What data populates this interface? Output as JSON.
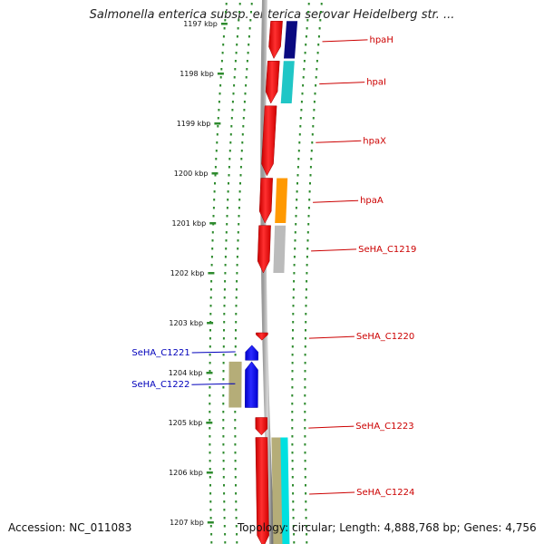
{
  "title": "Salmonella enterica subsp. enterica serovar Heidelberg str. ...",
  "accession": "Accession: NC_011083",
  "topology": "Topology: circular; Length: 4,888,768 bp; Genes: 4,756",
  "colors": {
    "forward": "#ff0000",
    "reverse": "#0000ff",
    "forward_label": "#cc0000",
    "reverse_label": "#0000bb",
    "tick": "#2e8b2e"
  },
  "ticks": [
    "1197 kbp",
    "1198 kbp",
    "1199 kbp",
    "1200 kbp",
    "1201 kbp",
    "1202 kbp",
    "1203 kbp",
    "1204 kbp",
    "1205 kbp",
    "1206 kbp",
    "1207 kbp"
  ],
  "genes": [
    {
      "name": "hpaH",
      "strand": "forward",
      "start_kbp": 1196.95,
      "end_kbp": 1197.7,
      "cog_color": "#0a0a80"
    },
    {
      "name": "hpaI",
      "strand": "forward",
      "start_kbp": 1197.75,
      "end_kbp": 1198.6,
      "cog_color": "#20c6c6"
    },
    {
      "name": "hpaX",
      "strand": "forward",
      "start_kbp": 1198.65,
      "end_kbp": 1200.05,
      "cog_color": ""
    },
    {
      "name": "hpaA",
      "strand": "forward",
      "start_kbp": 1200.1,
      "end_kbp": 1201.0,
      "cog_color": "#ff9900"
    },
    {
      "name": "SeHA_C1219",
      "strand": "forward",
      "start_kbp": 1201.05,
      "end_kbp": 1202.0,
      "cog_color": "#bbbbbb"
    },
    {
      "name": "SeHA_C1220",
      "strand": "forward",
      "start_kbp": 1203.2,
      "end_kbp": 1203.35,
      "cog_color": ""
    },
    {
      "name": "SeHA_C1221",
      "strand": "reverse",
      "start_kbp": 1203.45,
      "end_kbp": 1203.75,
      "cog_color": ""
    },
    {
      "name": "SeHA_C1222",
      "strand": "reverse",
      "start_kbp": 1203.78,
      "end_kbp": 1204.7,
      "cog_color": "#b5ad78"
    },
    {
      "name": "SeHA_C1223",
      "strand": "forward",
      "start_kbp": 1204.9,
      "end_kbp": 1205.25,
      "cog_color": ""
    },
    {
      "name": "SeHA_C1224",
      "strand": "forward",
      "start_kbp": 1205.3,
      "end_kbp": 1207.5,
      "cog_color": "#b5ad78",
      "cog_color_2": "#00e0e0"
    }
  ]
}
